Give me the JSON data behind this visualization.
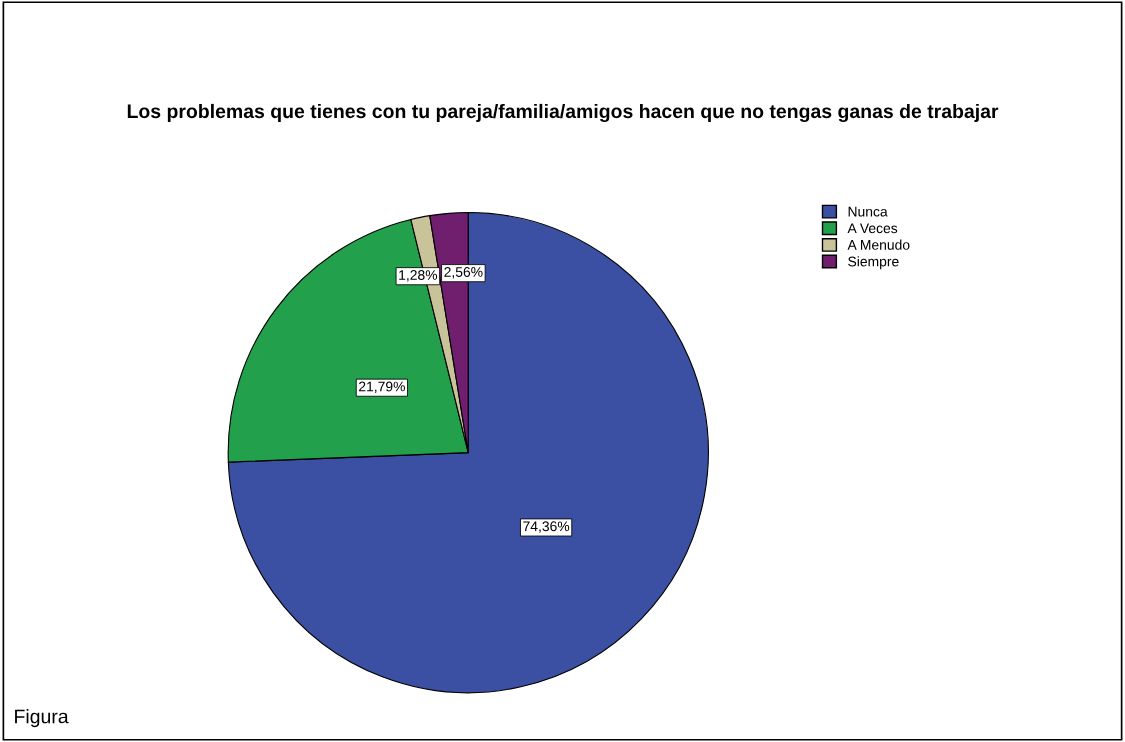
{
  "chart_data": {
    "type": "pie",
    "title": "Los problemas que tienes con tu pareja/familia/amigos hacen que no tengas ganas de trabajar",
    "categories": [
      "Nunca",
      "A Veces",
      "A Menudo",
      "Siempre"
    ],
    "values": [
      74.36,
      21.79,
      1.28,
      2.56
    ],
    "colors": [
      "#3b4fa3",
      "#23a04b",
      "#c9c39a",
      "#6f1f6e"
    ],
    "value_labels": [
      "74,36%",
      "21,79%",
      "1,28%",
      "2,56%"
    ],
    "legend": "top right",
    "annotations": [
      "Figura"
    ]
  }
}
